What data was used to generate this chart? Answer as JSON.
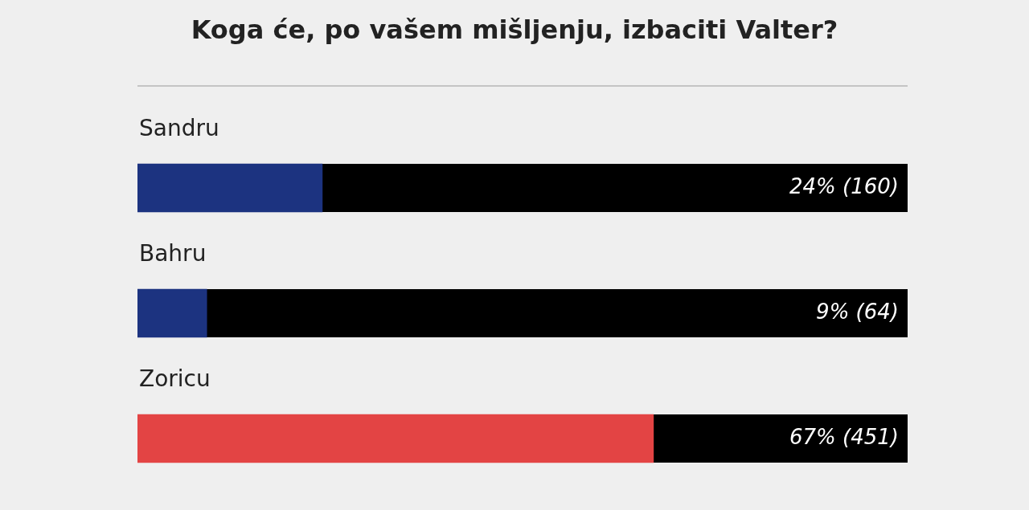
{
  "chart_data": {
    "type": "bar",
    "orientation": "horizontal",
    "title": "Koga će, po vašem mišljenju, izbaciti Valter?",
    "categories": [
      "Sandru",
      "Bahru",
      "Zoricu"
    ],
    "values": [
      24,
      9,
      67
    ],
    "colors": [
      "#1c3380",
      "#1c3380",
      "#e34444"
    ],
    "value_labels": [
      "24% (160)",
      "9% (64)",
      "67% (451)"
    ],
    "xlim": [
      0,
      100
    ],
    "tick_labels": false
  }
}
